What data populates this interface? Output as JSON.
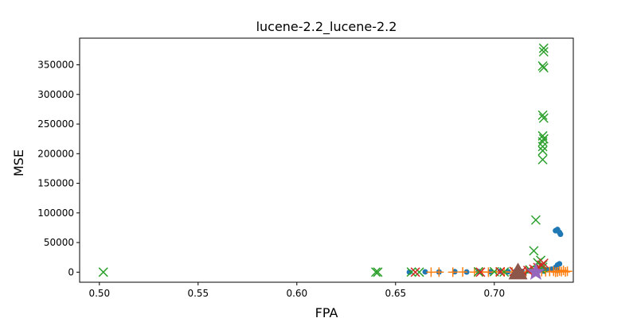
{
  "chart_data": {
    "type": "scatter",
    "title": "lucene-2.2_lucene-2.2",
    "xlabel": "FPA",
    "ylabel": "MSE",
    "xlim": [
      0.49,
      0.74
    ],
    "ylim": [
      -17000,
      395000
    ],
    "xticks": [
      0.5,
      0.55,
      0.6,
      0.65,
      0.7
    ],
    "xtick_labels": [
      "0.50",
      "0.55",
      "0.60",
      "0.65",
      "0.70"
    ],
    "yticks": [
      0,
      50000,
      100000,
      150000,
      200000,
      250000,
      300000,
      350000
    ],
    "ytick_labels": [
      "0",
      "50000",
      "100000",
      "150000",
      "200000",
      "250000",
      "300000",
      "350000"
    ],
    "grid": false,
    "series": [
      {
        "marker": "circle",
        "color": "#1f77b4",
        "x": [
          0.657,
          0.665,
          0.672,
          0.68,
          0.686,
          0.692,
          0.698,
          0.703,
          0.707,
          0.711,
          0.714,
          0.717,
          0.72,
          0.723,
          0.725,
          0.727,
          0.729,
          0.731,
          0.732,
          0.733,
          0.7335,
          0.733,
          0.731,
          0.732,
          0.732
        ],
        "y": [
          0,
          500,
          300,
          800,
          200,
          1000,
          600,
          1500,
          800,
          2000,
          1200,
          2500,
          1800,
          3000,
          2000,
          4000,
          5000,
          8000,
          12000,
          14000,
          64000,
          67000,
          70000,
          72000,
          3000
        ]
      },
      {
        "marker": "plus",
        "color": "#ff7f0e",
        "x": [
          0.668,
          0.672,
          0.679,
          0.684,
          0.69,
          0.694,
          0.697,
          0.701,
          0.705,
          0.709,
          0.712,
          0.716,
          0.719,
          0.722,
          0.724,
          0.726,
          0.728,
          0.73,
          0.731,
          0.732,
          0.733,
          0.734,
          0.735,
          0.736,
          0.737
        ],
        "y": [
          0,
          100,
          0,
          200,
          100,
          300,
          0,
          200,
          400,
          100,
          300,
          200,
          500,
          600,
          1000,
          800,
          1200,
          1500,
          0,
          500,
          2000,
          1000,
          3000,
          500,
          1500
        ]
      },
      {
        "marker": "x",
        "color": "#2ca02c",
        "x": [
          0.502,
          0.64,
          0.641,
          0.658,
          0.662,
          0.692,
          0.7,
          0.705,
          0.71,
          0.714,
          0.718,
          0.72,
          0.721,
          0.722,
          0.7235,
          0.7245,
          0.7245,
          0.7245,
          0.7245,
          0.725,
          0.7245,
          0.725,
          0.7245,
          0.725,
          0.7245,
          0.725,
          0.725,
          0.7245,
          0.7245,
          0.7235
        ],
        "y": [
          0,
          100,
          0,
          200,
          0,
          500,
          800,
          300,
          1200,
          2000,
          4000,
          36000,
          88000,
          16000,
          20000,
          190000,
          205000,
          212000,
          220000,
          225000,
          230000,
          260000,
          265000,
          345000,
          348000,
          372000,
          378000,
          12000,
          8000,
          5000
        ]
      },
      {
        "marker": "x",
        "color": "#d62728",
        "x": [
          0.66,
          0.693,
          0.703,
          0.71,
          0.714,
          0.717,
          0.72,
          0.722,
          0.724,
          0.725
        ],
        "y": [
          0,
          0,
          500,
          1000,
          2000,
          3000,
          5000,
          8000,
          12000,
          15000
        ]
      },
      {
        "marker": "star",
        "color": "#9467bd",
        "x": [
          0.721
        ],
        "y": [
          0
        ]
      },
      {
        "marker": "triangle",
        "color": "#8c564b",
        "x": [
          0.712
        ],
        "y": [
          0
        ]
      }
    ]
  }
}
